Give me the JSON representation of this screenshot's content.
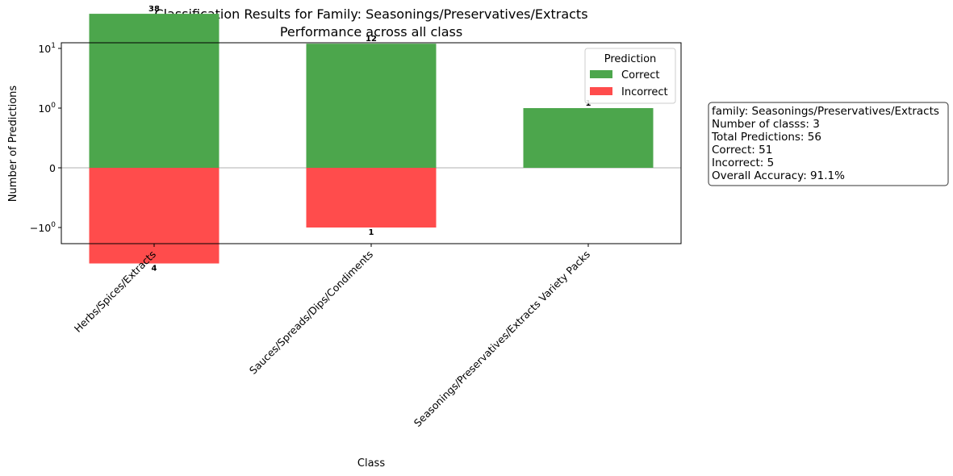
{
  "chart_data": {
    "type": "bar",
    "title": "Classification Results for Family: Seasonings/Preservatives/Extracts",
    "subtitle": "Performance across all class",
    "xlabel": "Class",
    "ylabel": "Number of Predictions",
    "yscale": "symlog",
    "yticks": [
      {
        "value": 10,
        "base": "10",
        "exp": "1"
      },
      {
        "value": 1,
        "base": "10",
        "exp": "0"
      },
      {
        "value": 0,
        "label": "0"
      },
      {
        "value": -1,
        "base": "−10",
        "exp": "0"
      }
    ],
    "categories": [
      "Herbs/Spices/Extracts",
      "Sauces/Spreads/Dips/Condiments",
      "Seasonings/Preservatives/Extracts Variety Packs"
    ],
    "series": [
      {
        "name": "Correct",
        "color": "#4ca64c",
        "values": [
          38,
          12,
          1
        ],
        "labels": [
          "38",
          "12",
          "1"
        ]
      },
      {
        "name": "Incorrect",
        "color": "#ff4c4c",
        "values": [
          4,
          1,
          0
        ],
        "labels": [
          "4",
          "1",
          ""
        ]
      }
    ],
    "legend": {
      "title": "Prediction",
      "placement": "top-right"
    },
    "grid": false,
    "zero_line": true
  },
  "info_box": {
    "lines": [
      "family: Seasonings/Preservatives/Extracts",
      "Number of classs: 3",
      "Total Predictions: 56",
      "Correct: 51",
      "Incorrect: 5",
      "Overall Accuracy: 91.1%"
    ]
  }
}
